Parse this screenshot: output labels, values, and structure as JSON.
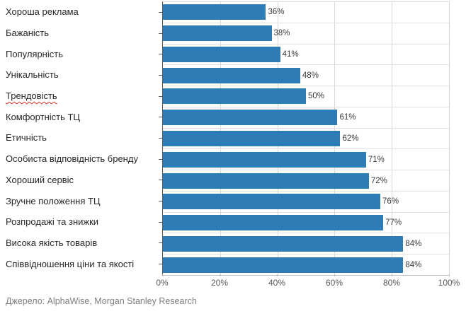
{
  "chart_data": {
    "type": "bar",
    "orientation": "horizontal",
    "categories": [
      "Хороша реклама",
      "Бажаність",
      "Популярність",
      "Унікальність",
      "Трендовість",
      "Комфортність ТЦ",
      "Етичність",
      "Особиста відповідність бренду",
      "Хороший сервіс",
      "Зручне положення ТЦ",
      "Розпродажі та знижки",
      "Висока якість товарів",
      "Співвідношення ціни та якості"
    ],
    "values": [
      36,
      38,
      41,
      48,
      50,
      61,
      62,
      71,
      72,
      76,
      77,
      84,
      84
    ],
    "value_labels": [
      "36%",
      "38%",
      "41%",
      "48%",
      "50%",
      "61%",
      "62%",
      "71%",
      "72%",
      "76%",
      "77%",
      "84%",
      "84%"
    ],
    "x_ticks": [
      "0%",
      "20%",
      "40%",
      "60%",
      "80%",
      "100%"
    ],
    "x_tick_positions": [
      0,
      20,
      40,
      60,
      80,
      100
    ],
    "xlim": [
      0,
      100
    ],
    "gridlines_percent": [
      20,
      40,
      60,
      80
    ],
    "grid": "vertical every 20% plus horizontal band separators",
    "legend": "none",
    "title": "",
    "xlabel": "",
    "ylabel": "",
    "bar_color": "#2e7cb5",
    "spellcheck_underline_index": 4
  },
  "source_note": "Джерело: AlphaWise, Morgan Stanley Research",
  "colors": {
    "bar": "#2e7cb5",
    "y_axis_line": "#595959",
    "gridline": "#d9d9d9",
    "band_separator": "#e2e2e2",
    "category_label": "#262626",
    "value_label": "#3a3a3a",
    "x_tick_label": "#595959",
    "source_note": "#7f7f7f",
    "spellcheck_squiggle": "#e0301e",
    "background": "#ffffff"
  }
}
